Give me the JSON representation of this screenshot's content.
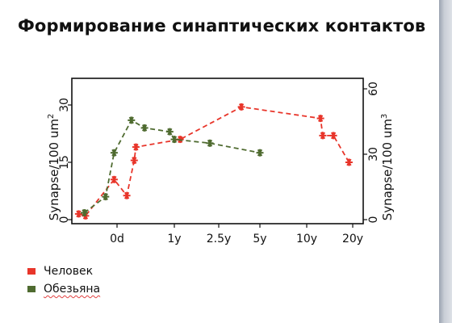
{
  "slide": {
    "title": "Формирование синаптических контактов"
  },
  "colors": {
    "human": "#e8352a",
    "monkey": "#4f6b30",
    "axis": "#111111"
  },
  "legend": [
    {
      "label": "Человек",
      "color": "#e8352a",
      "marker": "square"
    },
    {
      "label": "Обезьяна",
      "color": "#4f6b30",
      "marker": "square",
      "spellcheck_underline": true
    }
  ],
  "chart_data": {
    "type": "scatter",
    "title": "",
    "xlabel": "",
    "ylabel_left": "Synapse/100 um²",
    "ylabel_left_parts": {
      "base": "Synapse/100 um",
      "sup": "2"
    },
    "ylabel_right": "Synapse/100 um³",
    "ylabel_right_parts": {
      "base": "Synapse/100 um",
      "sup": "3"
    },
    "x_axis": {
      "scale": "nonlinear age",
      "ticks": [
        "0d",
        "1y",
        "2.5y",
        "5y",
        "10y",
        "20y"
      ],
      "note": "x positions below are expressed on the tick index scale (0 = 0d, 1 = 1y, 2 = 2.5y, 3 = 5y, 4 = 10y, 5 = 20y)",
      "range": [
        -0.9,
        5.3
      ]
    },
    "y_left": {
      "ticks": [
        0,
        15,
        30
      ],
      "range": [
        0,
        36
      ]
    },
    "y_right": {
      "ticks": [
        0,
        30,
        60
      ],
      "range": [
        0,
        72
      ]
    },
    "grid": false,
    "legend_position": "bottom-left",
    "series": [
      {
        "name": "Человек",
        "color": "#e8352a",
        "axis": "left",
        "marker": "asterisk",
        "line": "dashed",
        "points": [
          {
            "x": -0.67,
            "y": 1.5
          },
          {
            "x": -0.55,
            "y": 1.0
          },
          {
            "x": -0.05,
            "y": 10.5
          },
          {
            "x": 0.17,
            "y": 6.3
          },
          {
            "x": 0.3,
            "y": 15.5
          },
          {
            "x": 0.33,
            "y": 19.0
          },
          {
            "x": 1.13,
            "y": 21.0
          },
          {
            "x": 2.55,
            "y": 29.5
          },
          {
            "x": 4.3,
            "y": 26.5
          },
          {
            "x": 4.35,
            "y": 22.0
          },
          {
            "x": 4.58,
            "y": 22.0
          },
          {
            "x": 4.92,
            "y": 15.0
          }
        ]
      },
      {
        "name": "Обезьяна",
        "color": "#4f6b30",
        "axis": "left",
        "marker": "asterisk",
        "line": "dashed",
        "points": [
          {
            "x": -0.57,
            "y": 1.8
          },
          {
            "x": -0.2,
            "y": 6.0
          },
          {
            "x": -0.05,
            "y": 17.5
          },
          {
            "x": 0.25,
            "y": 26.0
          },
          {
            "x": 0.48,
            "y": 24.0
          },
          {
            "x": 0.92,
            "y": 23.0
          },
          {
            "x": 1.0,
            "y": 21.0
          },
          {
            "x": 1.8,
            "y": 20.0
          },
          {
            "x": 3.0,
            "y": 17.5
          }
        ]
      }
    ]
  }
}
